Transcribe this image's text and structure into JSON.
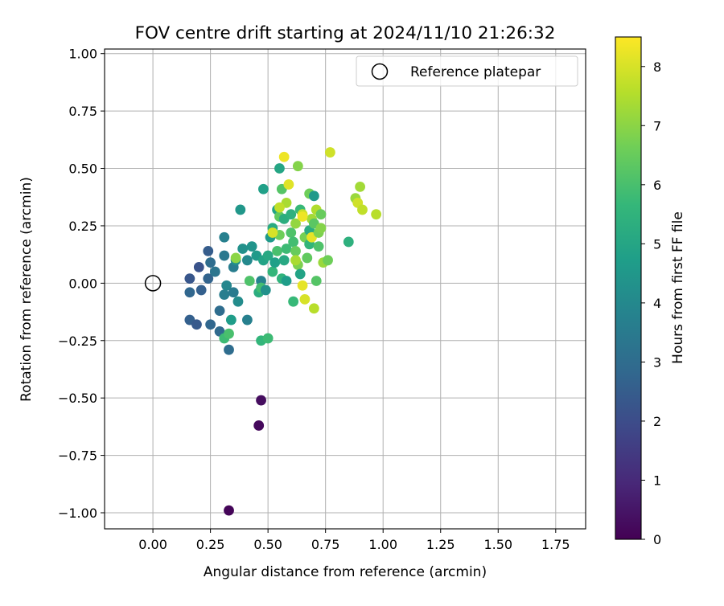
{
  "chart_data": {
    "type": "scatter",
    "title": "FOV centre drift starting at 2024/11/10 21:26:32",
    "xlabel": "Angular distance from reference (arcmin)",
    "ylabel": "Rotation from reference (arcmin)",
    "xlim": [
      -0.21,
      1.88
    ],
    "ylim": [
      -1.07,
      1.02
    ],
    "xticks": [
      0.0,
      0.25,
      0.5,
      0.75,
      1.0,
      1.25,
      1.5,
      1.75
    ],
    "xtick_labels": [
      "0.00",
      "0.25",
      "0.50",
      "0.75",
      "1.00",
      "1.25",
      "1.50",
      "1.75"
    ],
    "yticks": [
      1.0,
      0.75,
      0.5,
      0.25,
      0.0,
      -0.25,
      -0.5,
      -0.75,
      -1.0
    ],
    "ytick_labels": [
      "1.00",
      "0.75",
      "0.50",
      "0.25",
      "0.00",
      "−0.25",
      "−0.50",
      "−0.75",
      "−1.00"
    ],
    "grid": true,
    "legend": {
      "label": "Reference platepar",
      "position": "top-right"
    },
    "reference_point": {
      "x": 0.0,
      "y": 0.0
    },
    "colorbar": {
      "label": "Hours from first FF file",
      "min": 0,
      "max": 8.5,
      "ticks": [
        0,
        1,
        2,
        3,
        4,
        5,
        6,
        7,
        8
      ],
      "colormap": "viridis",
      "colormap_stops": [
        "#440154",
        "#482878",
        "#3e4989",
        "#31688e",
        "#26828e",
        "#1f9e89",
        "#35b779",
        "#6ece58",
        "#b5de2b",
        "#fde725"
      ]
    },
    "points": [
      {
        "x": 0.33,
        "y": -0.99,
        "h": 0.1
      },
      {
        "x": 0.46,
        "y": -0.62,
        "h": 0.2
      },
      {
        "x": 0.47,
        "y": -0.51,
        "h": 0.3
      },
      {
        "x": 0.16,
        "y": -0.16,
        "h": 2.6
      },
      {
        "x": 0.19,
        "y": -0.18,
        "h": 2.4
      },
      {
        "x": 0.25,
        "y": -0.18,
        "h": 2.8
      },
      {
        "x": 0.29,
        "y": -0.21,
        "h": 2.9
      },
      {
        "x": 0.33,
        "y": -0.29,
        "h": 3.0
      },
      {
        "x": 0.16,
        "y": 0.02,
        "h": 2.3
      },
      {
        "x": 0.16,
        "y": -0.04,
        "h": 2.8
      },
      {
        "x": 0.2,
        "y": 0.07,
        "h": 2.2
      },
      {
        "x": 0.21,
        "y": -0.03,
        "h": 2.6
      },
      {
        "x": 0.24,
        "y": 0.14,
        "h": 2.5
      },
      {
        "x": 0.24,
        "y": 0.02,
        "h": 2.7
      },
      {
        "x": 0.25,
        "y": 0.09,
        "h": 3.0
      },
      {
        "x": 0.27,
        "y": 0.05,
        "h": 3.3
      },
      {
        "x": 0.29,
        "y": -0.12,
        "h": 3.0
      },
      {
        "x": 0.31,
        "y": 0.2,
        "h": 3.7
      },
      {
        "x": 0.31,
        "y": 0.12,
        "h": 3.4
      },
      {
        "x": 0.31,
        "y": -0.05,
        "h": 3.6
      },
      {
        "x": 0.32,
        "y": -0.01,
        "h": 3.9
      },
      {
        "x": 0.35,
        "y": 0.07,
        "h": 3.6
      },
      {
        "x": 0.35,
        "y": -0.04,
        "h": 3.5
      },
      {
        "x": 0.37,
        "y": -0.08,
        "h": 4.1
      },
      {
        "x": 0.36,
        "y": 0.1,
        "h": 4.2
      },
      {
        "x": 0.38,
        "y": 0.32,
        "h": 4.5
      },
      {
        "x": 0.39,
        "y": 0.15,
        "h": 4.3
      },
      {
        "x": 0.41,
        "y": 0.1,
        "h": 4.0
      },
      {
        "x": 0.41,
        "y": -0.16,
        "h": 3.7
      },
      {
        "x": 0.43,
        "y": 0.16,
        "h": 4.4
      },
      {
        "x": 0.45,
        "y": 0.12,
        "h": 4.6
      },
      {
        "x": 0.46,
        "y": -0.04,
        "h": 5.3
      },
      {
        "x": 0.47,
        "y": 0.01,
        "h": 3.8
      },
      {
        "x": 0.47,
        "y": -0.02,
        "h": 5.9
      },
      {
        "x": 0.48,
        "y": 0.41,
        "h": 4.8
      },
      {
        "x": 0.48,
        "y": 0.1,
        "h": 4.9
      },
      {
        "x": 0.49,
        "y": -0.03,
        "h": 4.3
      },
      {
        "x": 0.5,
        "y": 0.12,
        "h": 5.1
      },
      {
        "x": 0.51,
        "y": 0.2,
        "h": 4.6
      },
      {
        "x": 0.52,
        "y": 0.24,
        "h": 5.2
      },
      {
        "x": 0.52,
        "y": 0.05,
        "h": 5.6
      },
      {
        "x": 0.53,
        "y": 0.09,
        "h": 4.8
      },
      {
        "x": 0.54,
        "y": 0.32,
        "h": 4.9
      },
      {
        "x": 0.54,
        "y": 0.14,
        "h": 6.0
      },
      {
        "x": 0.55,
        "y": 0.5,
        "h": 5.0
      },
      {
        "x": 0.55,
        "y": 0.29,
        "h": 6.4
      },
      {
        "x": 0.55,
        "y": 0.21,
        "h": 6.6
      },
      {
        "x": 0.56,
        "y": 0.41,
        "h": 6.2
      },
      {
        "x": 0.56,
        "y": 0.02,
        "h": 5.5
      },
      {
        "x": 0.57,
        "y": 0.55,
        "h": 8.3
      },
      {
        "x": 0.57,
        "y": 0.28,
        "h": 5.3
      },
      {
        "x": 0.57,
        "y": 0.1,
        "h": 5.1
      },
      {
        "x": 0.58,
        "y": 0.35,
        "h": 7.4
      },
      {
        "x": 0.58,
        "y": 0.15,
        "h": 5.8
      },
      {
        "x": 0.58,
        "y": 0.01,
        "h": 4.7
      },
      {
        "x": 0.59,
        "y": 0.43,
        "h": 8.1
      },
      {
        "x": 0.6,
        "y": 0.3,
        "h": 5.4
      },
      {
        "x": 0.6,
        "y": 0.22,
        "h": 6.1
      },
      {
        "x": 0.61,
        "y": 0.18,
        "h": 5.9
      },
      {
        "x": 0.61,
        "y": -0.08,
        "h": 5.7
      },
      {
        "x": 0.62,
        "y": 0.26,
        "h": 7.1
      },
      {
        "x": 0.62,
        "y": 0.14,
        "h": 6.5
      },
      {
        "x": 0.63,
        "y": 0.51,
        "h": 6.9
      },
      {
        "x": 0.63,
        "y": 0.08,
        "h": 6.8
      },
      {
        "x": 0.64,
        "y": 0.32,
        "h": 5.7
      },
      {
        "x": 0.64,
        "y": 0.04,
        "h": 4.9
      },
      {
        "x": 0.65,
        "y": -0.01,
        "h": 8.2
      },
      {
        "x": 0.65,
        "y": 0.3,
        "h": 7.8
      },
      {
        "x": 0.66,
        "y": -0.07,
        "h": 8.0
      },
      {
        "x": 0.66,
        "y": 0.2,
        "h": 6.7
      },
      {
        "x": 0.67,
        "y": 0.11,
        "h": 6.4
      },
      {
        "x": 0.68,
        "y": 0.39,
        "h": 6.6
      },
      {
        "x": 0.68,
        "y": 0.23,
        "h": 5.2
      },
      {
        "x": 0.68,
        "y": 0.17,
        "h": 5.6
      },
      {
        "x": 0.69,
        "y": 0.28,
        "h": 7.3
      },
      {
        "x": 0.69,
        "y": 0.2,
        "h": 8.2
      },
      {
        "x": 0.7,
        "y": 0.38,
        "h": 4.6
      },
      {
        "x": 0.7,
        "y": 0.26,
        "h": 6.3
      },
      {
        "x": 0.7,
        "y": -0.11,
        "h": 7.6
      },
      {
        "x": 0.71,
        "y": 0.32,
        "h": 7.5
      },
      {
        "x": 0.71,
        "y": 0.01,
        "h": 6.2
      },
      {
        "x": 0.72,
        "y": 0.22,
        "h": 6.8
      },
      {
        "x": 0.72,
        "y": 0.16,
        "h": 6.1
      },
      {
        "x": 0.73,
        "y": 0.3,
        "h": 6.5
      },
      {
        "x": 0.73,
        "y": 0.24,
        "h": 6.9
      },
      {
        "x": 0.74,
        "y": 0.09,
        "h": 7.2
      },
      {
        "x": 0.76,
        "y": 0.1,
        "h": 6.6
      },
      {
        "x": 0.77,
        "y": 0.57,
        "h": 7.9
      },
      {
        "x": 0.85,
        "y": 0.18,
        "h": 5.4
      },
      {
        "x": 0.88,
        "y": 0.37,
        "h": 7.2
      },
      {
        "x": 0.89,
        "y": 0.35,
        "h": 7.9
      },
      {
        "x": 0.9,
        "y": 0.42,
        "h": 7.3
      },
      {
        "x": 0.91,
        "y": 0.32,
        "h": 7.7
      },
      {
        "x": 0.97,
        "y": 0.3,
        "h": 7.6
      },
      {
        "x": 0.31,
        "y": -0.24,
        "h": 5.8
      },
      {
        "x": 0.33,
        "y": -0.22,
        "h": 6.0
      },
      {
        "x": 0.34,
        "y": -0.16,
        "h": 4.7
      },
      {
        "x": 0.47,
        "y": -0.25,
        "h": 5.6
      },
      {
        "x": 0.5,
        "y": -0.24,
        "h": 5.8
      },
      {
        "x": 0.42,
        "y": 0.01,
        "h": 6.1
      },
      {
        "x": 0.36,
        "y": 0.11,
        "h": 7.0
      },
      {
        "x": 0.52,
        "y": 0.22,
        "h": 8.0
      },
      {
        "x": 0.55,
        "y": 0.33,
        "h": 7.7
      },
      {
        "x": 0.62,
        "y": 0.1,
        "h": 7.4
      },
      {
        "x": 0.65,
        "y": 0.29,
        "h": 8.3
      }
    ]
  }
}
